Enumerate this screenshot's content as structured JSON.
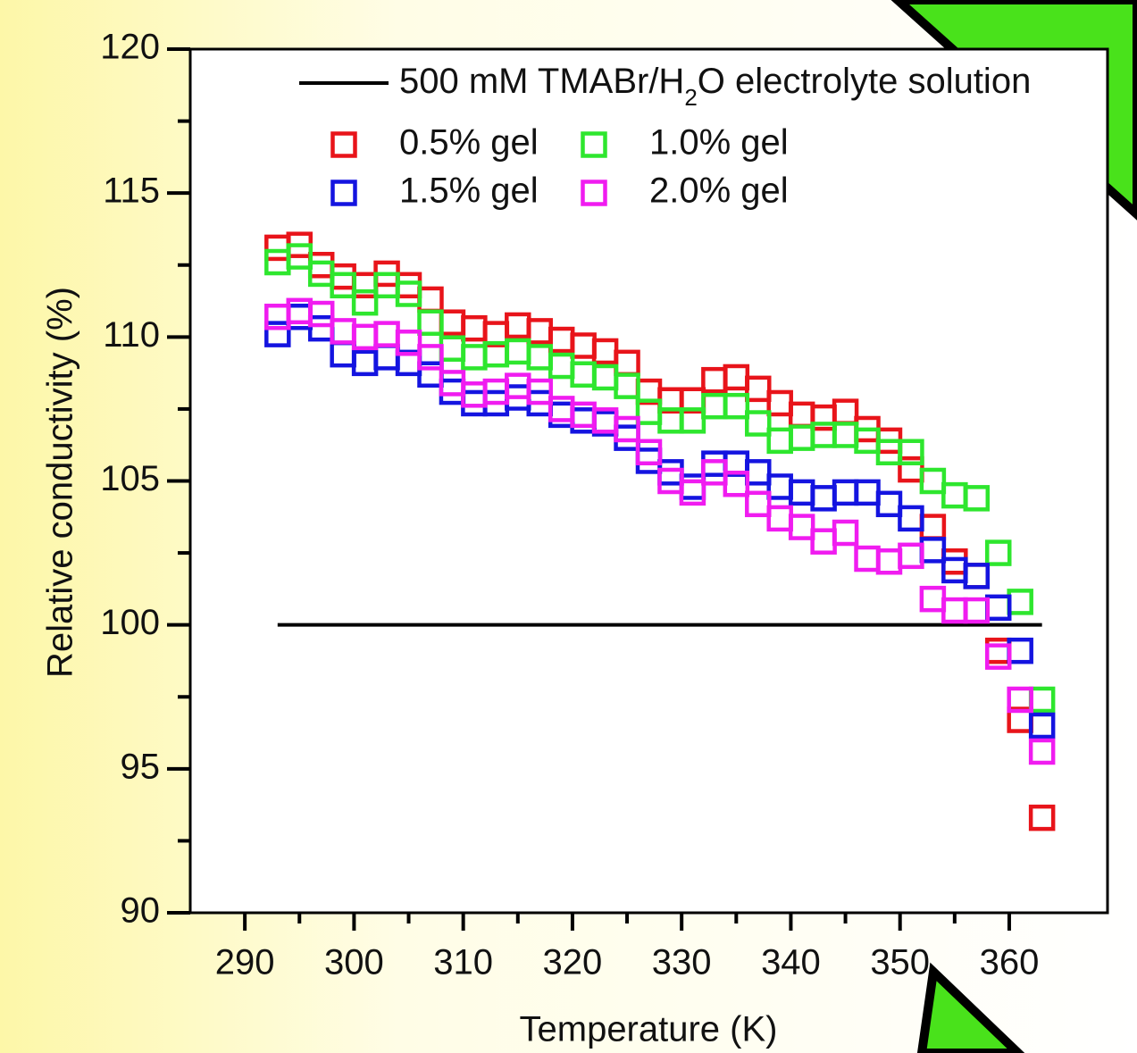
{
  "chart_data": {
    "type": "scatter",
    "x_label": "Temperature (K)",
    "y_label": "Relative conductivity (%)",
    "xlim": [
      285,
      369
    ],
    "ylim": [
      90,
      120
    ],
    "xticks": [
      290,
      300,
      310,
      320,
      330,
      340,
      350,
      360
    ],
    "yticks": [
      90,
      95,
      100,
      105,
      110,
      115,
      120
    ],
    "x": [
      293,
      295,
      297,
      299,
      301,
      303,
      305,
      307,
      309,
      311,
      313,
      315,
      317,
      319,
      321,
      323,
      325,
      327,
      329,
      331,
      333,
      335,
      337,
      339,
      341,
      343,
      345,
      347,
      349,
      351,
      353,
      355,
      357,
      359,
      361,
      363
    ],
    "reference": {
      "name": [
        "500 mM TMABr/H",
        "2",
        "O electrolyte solution"
      ],
      "value": 100,
      "x": [
        293,
        363
      ],
      "color": "#000000"
    },
    "series": [
      {
        "name": "0.5% gel",
        "color": "#e8141a",
        "values": [
          113.1,
          113.2,
          112.5,
          112.1,
          111.8,
          112.2,
          111.8,
          111.3,
          110.5,
          110.3,
          110.1,
          110.4,
          110.2,
          109.9,
          109.7,
          109.5,
          109.1,
          108.1,
          107.8,
          107.8,
          108.5,
          108.6,
          108.2,
          107.7,
          107.3,
          107.2,
          107.4,
          106.8,
          106.4,
          105.4,
          103.4,
          102.2,
          101.7,
          99.1,
          96.7,
          93.3
        ]
      },
      {
        "name": "1.0% gel",
        "color": "#2ee62e",
        "values": [
          112.6,
          112.8,
          112.2,
          111.8,
          111.2,
          111.8,
          111.5,
          110.5,
          109.6,
          109.3,
          109.4,
          109.5,
          109.3,
          109.0,
          108.7,
          108.6,
          108.3,
          107.4,
          107.1,
          107.1,
          107.6,
          107.6,
          107.0,
          106.4,
          106.5,
          106.6,
          106.6,
          106.4,
          106.0,
          106.0,
          105.0,
          104.5,
          104.4,
          102.5,
          100.8,
          97.4
        ]
      },
      {
        "name": "1.5% gel",
        "color": "#1414e0",
        "values": [
          110.1,
          110.7,
          110.3,
          109.4,
          109.1,
          109.3,
          109.1,
          108.7,
          108.1,
          107.7,
          107.7,
          107.9,
          107.7,
          107.3,
          107.1,
          107.0,
          106.5,
          105.7,
          105.3,
          104.8,
          105.6,
          105.6,
          105.3,
          104.8,
          104.6,
          104.4,
          104.6,
          104.6,
          104.2,
          103.7,
          102.6,
          101.9,
          101.7,
          100.6,
          99.1,
          96.5
        ]
      },
      {
        "name": "2.0% gel",
        "color": "#f01cf0",
        "values": [
          110.7,
          110.9,
          110.8,
          110.2,
          110.0,
          110.1,
          109.8,
          109.3,
          108.4,
          108.0,
          108.1,
          108.3,
          108.1,
          107.5,
          107.3,
          107.1,
          106.8,
          106.0,
          105.0,
          104.6,
          105.3,
          104.9,
          104.2,
          103.7,
          103.4,
          102.9,
          103.2,
          102.3,
          102.2,
          102.4,
          100.9,
          100.5,
          100.5,
          98.9,
          97.4,
          95.6
        ]
      }
    ]
  }
}
